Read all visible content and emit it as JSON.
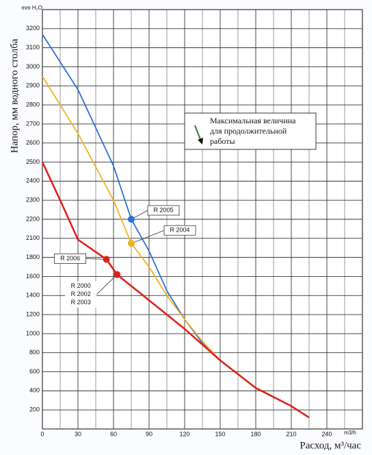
{
  "chart_data": {
    "type": "line",
    "y_label": "Напор, мм водного столба",
    "y_unit": "mm H₂O",
    "x_label": "Расход, м³/час",
    "x_unit": "m3/h",
    "xlim": [
      0,
      270
    ],
    "xticks": [
      0,
      30,
      60,
      90,
      120,
      150,
      180,
      210,
      240
    ],
    "xminorticks": [
      15,
      45,
      75,
      105,
      135,
      165,
      195,
      225,
      255
    ],
    "ylim": [
      0,
      3300
    ],
    "yticks": [
      200,
      400,
      600,
      800,
      1000,
      1200,
      1400,
      1600,
      1800,
      2100,
      2200,
      2300,
      2400,
      2500,
      2600,
      2700,
      2800,
      2900,
      3000,
      3100,
      3200
    ],
    "grid": true,
    "series": [
      {
        "color": "#2a6fd6",
        "x": [
          0,
          30,
          60,
          75,
          90,
          105,
          120,
          135,
          150
        ],
        "values": [
          3170,
          2880,
          2480,
          2200,
          1900,
          1450,
          1150,
          900,
          720
        ]
      },
      {
        "color": "#f2b21c",
        "x": [
          0,
          30,
          60,
          75,
          90,
          105,
          120,
          135,
          150
        ],
        "values": [
          2950,
          2650,
          2300,
          2020,
          1700,
          1400,
          1150,
          920,
          720
        ]
      },
      {
        "color": "#e0201c",
        "x": [
          0,
          15,
          30,
          54,
          63,
          90,
          120,
          150,
          180,
          210,
          225
        ],
        "values": [
          2500,
          2300,
          2080,
          1780,
          1620,
          1350,
          1050,
          720,
          430,
          240,
          120
        ]
      }
    ],
    "markers": [
      {
        "labels": [
          "R 2005"
        ],
        "x": 75,
        "y": 2200,
        "color": "#2a6fd6"
      },
      {
        "labels": [
          "R 2004"
        ],
        "x": 75,
        "y": 2020,
        "color": "#f2b21c"
      },
      {
        "labels": [
          "R 2006"
        ],
        "x": 54,
        "y": 1780,
        "color": "#e0201c"
      },
      {
        "labels": [
          "R 2000",
          "R 2002",
          "R 2003"
        ],
        "x": 63,
        "y": 1620,
        "color": "#e0201c"
      }
    ],
    "note": [
      "Максимальная величина",
      "для продолжительной",
      "работы"
    ]
  }
}
